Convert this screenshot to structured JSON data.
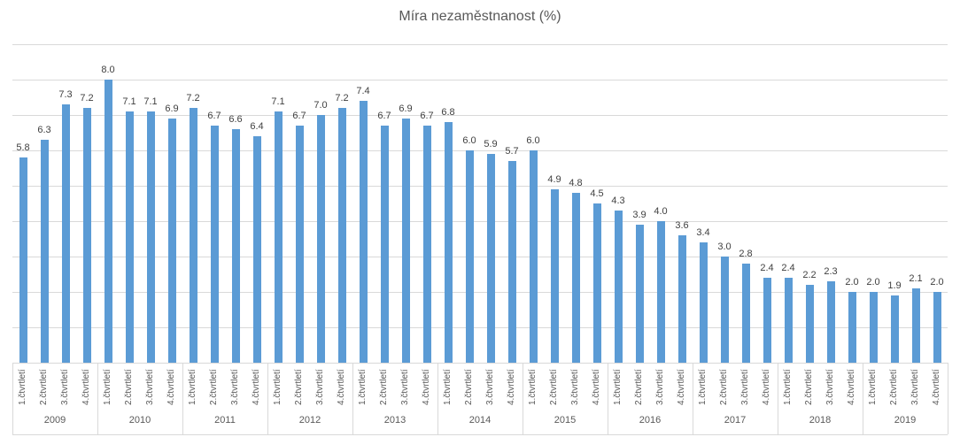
{
  "chart_data": {
    "type": "bar",
    "title": "Míra nezaměstnanost (%)",
    "xlabel": "",
    "ylabel": "",
    "ylim": [
      0,
      9
    ],
    "grid_step": 1,
    "grid": "horizontal",
    "legend": "none",
    "data_labels": "above-bars",
    "bar_color": "#5b9bd5",
    "quarter_labels": [
      "1.čtvrtletí",
      "2.čtvrtletí",
      "3.čtvrtletí",
      "4.čtvrtletí"
    ],
    "groups": [
      {
        "year": "2009",
        "values": [
          5.8,
          6.3,
          7.3,
          7.2
        ]
      },
      {
        "year": "2010",
        "values": [
          8.0,
          7.1,
          7.1,
          6.9
        ]
      },
      {
        "year": "2011",
        "values": [
          7.2,
          6.7,
          6.6,
          6.4
        ]
      },
      {
        "year": "2012",
        "values": [
          7.1,
          6.7,
          7.0,
          7.2
        ]
      },
      {
        "year": "2013",
        "values": [
          7.4,
          6.7,
          6.9,
          6.7
        ]
      },
      {
        "year": "2014",
        "values": [
          6.8,
          6.0,
          5.9,
          5.7
        ]
      },
      {
        "year": "2015",
        "values": [
          6.0,
          4.9,
          4.8,
          4.5
        ]
      },
      {
        "year": "2016",
        "values": [
          4.3,
          3.9,
          4.0,
          3.6
        ]
      },
      {
        "year": "2017",
        "values": [
          3.4,
          3.0,
          2.8,
          2.4
        ]
      },
      {
        "year": "2018",
        "values": [
          2.4,
          2.2,
          2.3,
          2.0
        ]
      },
      {
        "year": "2019",
        "values": [
          2.0,
          1.9,
          2.1,
          2.0
        ]
      }
    ],
    "colors": {
      "bar": "#5b9bd5",
      "gridline": "#d9d9d9",
      "data_label": "#404040",
      "axis_text": "#595959",
      "title_text": "#595959"
    }
  }
}
